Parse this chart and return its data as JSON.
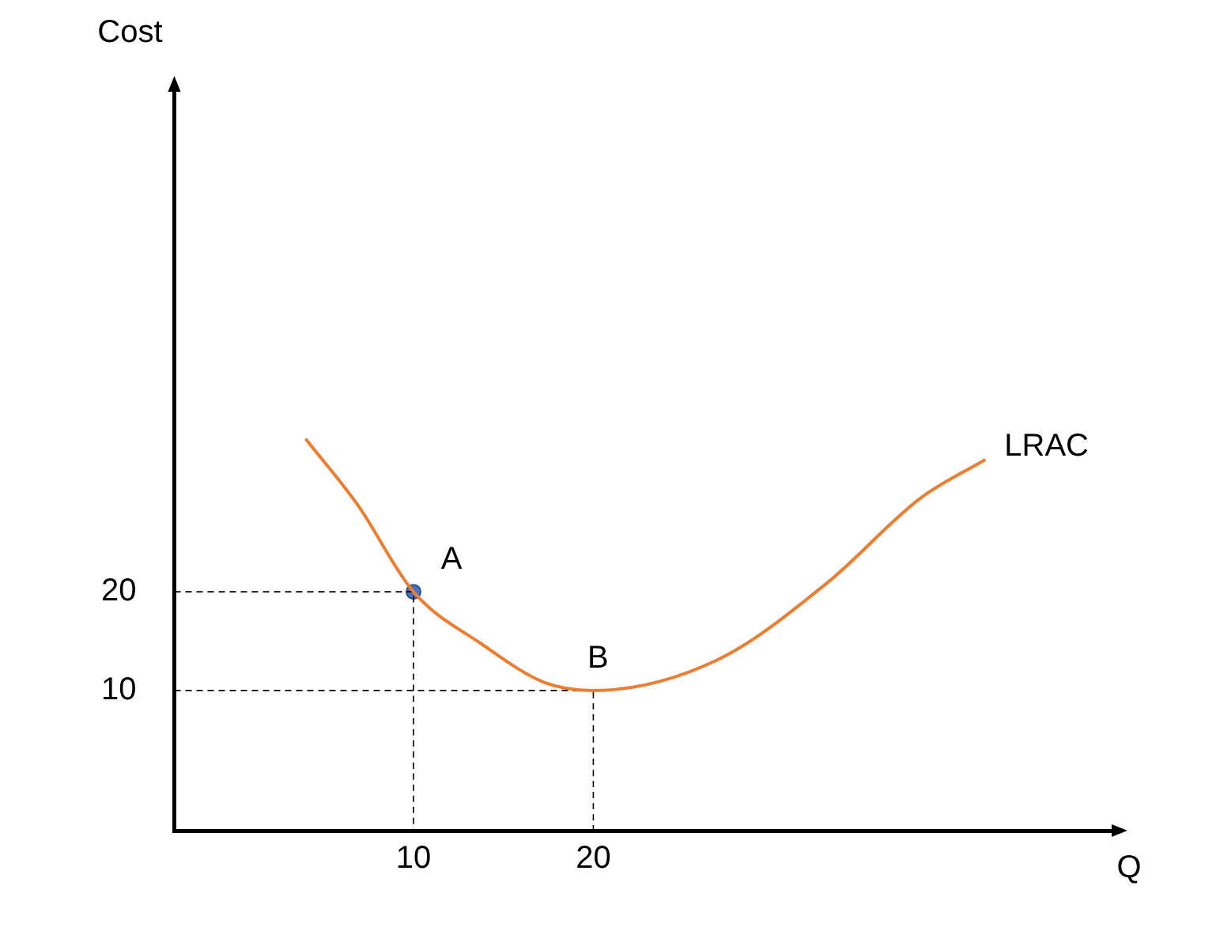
{
  "chart_data": {
    "type": "line",
    "xlabel": "Q",
    "ylabel": "Cost",
    "xlim": [
      -3.3,
      49
    ],
    "ylim": [
      -4.2,
      71
    ],
    "xticks": [
      10,
      20
    ],
    "yticks": [
      10,
      20
    ],
    "series": [
      {
        "name": "LRAC",
        "color": "#ed7d31",
        "marker": "none",
        "line_style": "solid",
        "x": [
          4,
          6.9,
          10,
          13.8,
          17.3,
          20,
          26.9,
          33,
          38.2,
          41.8
        ],
        "values": [
          35.5,
          28.8,
          20,
          14.7,
          10.8,
          10,
          13.1,
          20.9,
          29.5,
          33.4
        ]
      },
      {
        "color": "#000000",
        "marker": "none",
        "line_style": "dashed",
        "x": [
          -3.3,
          10,
          10
        ],
        "values": [
          20,
          20,
          -4.2
        ]
      },
      {
        "color": "#000000",
        "marker": "none",
        "line_style": "dashed",
        "x": [
          -3.3,
          20,
          20
        ],
        "values": [
          10,
          10,
          -4.2
        ]
      },
      {
        "type": "scatter",
        "color": "#4472c4",
        "marker": "circle",
        "x": [
          10
        ],
        "values": [
          20
        ]
      }
    ],
    "annotations": [
      {
        "text": "A",
        "x": 10,
        "y": 20
      },
      {
        "text": "B",
        "x": 20,
        "y": 10
      }
    ]
  }
}
